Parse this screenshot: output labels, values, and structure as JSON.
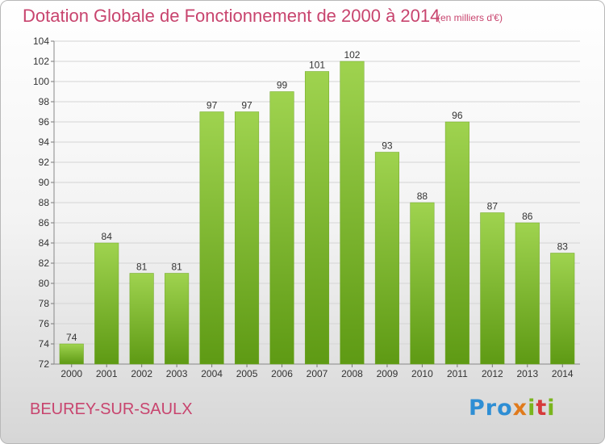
{
  "header": {
    "title": "Dotation Globale de Fonctionnement de 2000 à 2014",
    "unit": "(en milliers d'€)"
  },
  "footer": {
    "commune": "BEUREY-SUR-SAULX",
    "logo_text": "Proxiti"
  },
  "colors": {
    "accent": "#c8446e",
    "bar_top": "#9fd34f",
    "bar_bottom": "#5e9a14"
  },
  "chart_data": {
    "type": "bar",
    "title": "Dotation Globale de Fonctionnement de 2000 à 2014",
    "subtitle": "(en milliers d'€)",
    "xlabel": "",
    "ylabel": "",
    "categories": [
      "2000",
      "2001",
      "2002",
      "2003",
      "2004",
      "2005",
      "2006",
      "2007",
      "2008",
      "2009",
      "2010",
      "2011",
      "2012",
      "2013",
      "2014"
    ],
    "values": [
      74,
      84,
      81,
      81,
      97,
      97,
      99,
      101,
      102,
      93,
      88,
      96,
      87,
      86,
      83
    ],
    "ylim": [
      72,
      104
    ],
    "yticks": [
      72,
      74,
      76,
      78,
      80,
      82,
      84,
      86,
      88,
      90,
      92,
      94,
      96,
      98,
      100,
      102,
      104
    ],
    "grid": true,
    "data_labels": true
  }
}
